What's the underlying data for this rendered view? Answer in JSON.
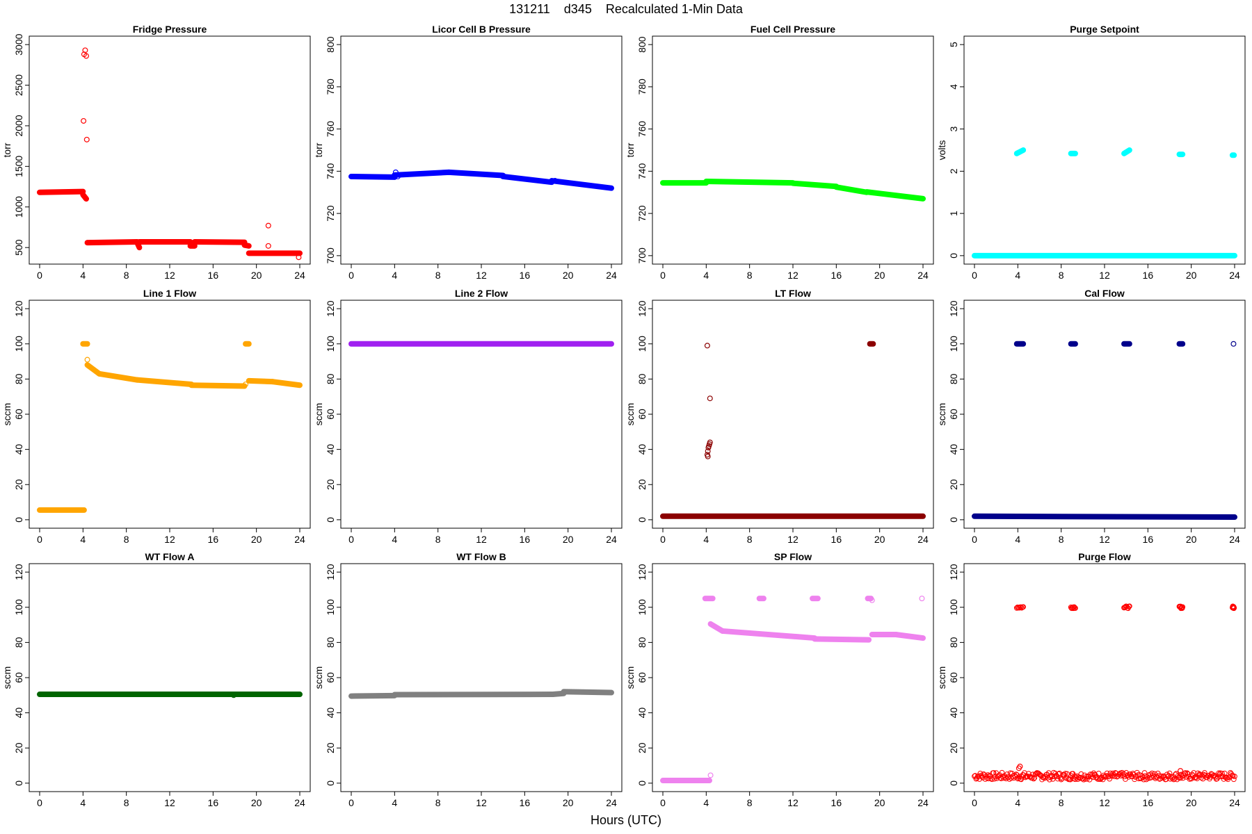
{
  "figure": {
    "title": "131211    d345    Recalculated 1-Min Data",
    "xlabel": "Hours (UTC)"
  },
  "chart_data": [
    {
      "type": "scatter",
      "title": "Fridge Pressure",
      "ylabel": "torr",
      "color": "#ff0000",
      "xlim": [
        0,
        24
      ],
      "ylim": [
        400,
        3000
      ],
      "xticks": [
        0,
        4,
        8,
        12,
        16,
        20,
        24
      ],
      "yticks": [
        500,
        1000,
        1500,
        2000,
        2500,
        3000
      ],
      "segments": [
        [
          0,
          4,
          1180,
          1190
        ],
        [
          4,
          4.3,
          1150,
          1100
        ],
        [
          4.4,
          9,
          560,
          570
        ],
        [
          9,
          9.2,
          560,
          500
        ],
        [
          9.2,
          13.9,
          570,
          570
        ],
        [
          13.9,
          14.3,
          520,
          520
        ],
        [
          14.3,
          18.9,
          570,
          565
        ],
        [
          18.9,
          19.3,
          530,
          520
        ],
        [
          19.3,
          24,
          430,
          430
        ]
      ],
      "points": [
        [
          4.1,
          2880
        ],
        [
          4.2,
          2930
        ],
        [
          4.3,
          2860
        ],
        [
          4.05,
          2060
        ],
        [
          4.35,
          1830
        ],
        [
          21.1,
          770
        ],
        [
          21.1,
          520
        ],
        [
          23.9,
          380
        ]
      ]
    },
    {
      "type": "scatter",
      "title": "Licor Cell B Pressure",
      "ylabel": "torr",
      "color": "#0000ff",
      "xlim": [
        0,
        24
      ],
      "ylim": [
        700,
        800
      ],
      "xticks": [
        0,
        4,
        8,
        12,
        16,
        20,
        24
      ],
      "yticks": [
        700,
        720,
        740,
        760,
        780,
        800
      ],
      "segments": [
        [
          0,
          4,
          737.5,
          737.2
        ],
        [
          4,
          9,
          738.2,
          739.5
        ],
        [
          9,
          14,
          739.5,
          738
        ],
        [
          14,
          18.5,
          737.5,
          734.8
        ],
        [
          18.5,
          24,
          735.5,
          732
        ]
      ],
      "points": [
        [
          4.1,
          739.5
        ],
        [
          4.3,
          737.5
        ],
        [
          18.8,
          735.5
        ]
      ]
    },
    {
      "type": "scatter",
      "title": "Fuel Cell Pressure",
      "ylabel": "torr",
      "color": "#00ff00",
      "xlim": [
        0,
        24
      ],
      "ylim": [
        700,
        800
      ],
      "xticks": [
        0,
        4,
        8,
        12,
        16,
        20,
        24
      ],
      "yticks": [
        700,
        720,
        740,
        760,
        780,
        800
      ],
      "segments": [
        [
          0,
          4,
          734.5,
          734.5
        ],
        [
          4,
          12,
          735.2,
          734.5
        ],
        [
          12,
          16,
          734.3,
          732.8
        ],
        [
          16,
          18.8,
          732.5,
          730
        ],
        [
          18.8,
          24,
          730.2,
          727
        ]
      ],
      "points": []
    },
    {
      "type": "scatter",
      "title": "Purge Setpoint",
      "ylabel": "volts",
      "color": "#00ffff",
      "xlim": [
        0,
        24
      ],
      "ylim": [
        0,
        5
      ],
      "xticks": [
        0,
        4,
        8,
        12,
        16,
        20,
        24
      ],
      "yticks": [
        0,
        1,
        2,
        3,
        4,
        5
      ],
      "segments": [
        [
          0,
          24,
          0,
          0
        ],
        [
          3.9,
          4.5,
          2.42,
          2.5
        ],
        [
          8.9,
          9.3,
          2.42,
          2.42
        ],
        [
          13.8,
          14.3,
          2.42,
          2.5
        ],
        [
          18.9,
          19.2,
          2.4,
          2.4
        ],
        [
          23.8,
          23.95,
          2.38,
          2.38
        ]
      ],
      "points": []
    },
    {
      "type": "scatter",
      "title": "Line 1 Flow",
      "ylabel": "sccm",
      "color": "#ffa500",
      "xlim": [
        0,
        24
      ],
      "ylim": [
        0,
        120
      ],
      "xticks": [
        0,
        4,
        8,
        12,
        16,
        20,
        24
      ],
      "yticks": [
        0,
        20,
        40,
        60,
        80,
        100,
        120
      ],
      "segments": [
        [
          0,
          4.1,
          5.5,
          5.5
        ],
        [
          4,
          4.4,
          100,
          100
        ],
        [
          4.4,
          5.5,
          88,
          83
        ],
        [
          5.5,
          9,
          83,
          79.5
        ],
        [
          9,
          14,
          79.5,
          77
        ],
        [
          14,
          18.9,
          76.5,
          76
        ],
        [
          19,
          19.3,
          100,
          100
        ],
        [
          19.3,
          21.5,
          79,
          78.5
        ],
        [
          21.5,
          24,
          78.5,
          76.5
        ]
      ],
      "points": [
        [
          4.4,
          91
        ],
        [
          19,
          77
        ]
      ]
    },
    {
      "type": "scatter",
      "title": "Line 2 Flow",
      "ylabel": "sccm",
      "color": "#a020f0",
      "xlim": [
        0,
        24
      ],
      "ylim": [
        0,
        120
      ],
      "xticks": [
        0,
        4,
        8,
        12,
        16,
        20,
        24
      ],
      "yticks": [
        0,
        20,
        40,
        60,
        80,
        100,
        120
      ],
      "segments": [
        [
          0,
          24,
          100,
          100
        ]
      ],
      "points": []
    },
    {
      "type": "scatter",
      "title": "LT Flow",
      "ylabel": "sccm",
      "color": "#8b0000",
      "xlim": [
        0,
        24
      ],
      "ylim": [
        0,
        120
      ],
      "xticks": [
        0,
        4,
        8,
        12,
        16,
        20,
        24
      ],
      "yticks": [
        0,
        20,
        40,
        60,
        80,
        100,
        120
      ],
      "segments": [
        [
          0,
          24,
          2,
          2
        ],
        [
          19.1,
          19.4,
          100,
          100
        ]
      ],
      "points": [
        [
          4.1,
          99
        ],
        [
          4.35,
          69
        ],
        [
          4.1,
          37
        ],
        [
          4.15,
          39
        ],
        [
          4.2,
          41
        ],
        [
          4.25,
          42
        ],
        [
          4.3,
          43
        ],
        [
          4.35,
          44
        ],
        [
          4.15,
          36
        ]
      ]
    },
    {
      "type": "scatter",
      "title": "Cal Flow",
      "ylabel": "sccm",
      "color": "#00008b",
      "xlim": [
        0,
        24
      ],
      "ylim": [
        0,
        120
      ],
      "xticks": [
        0,
        4,
        8,
        12,
        16,
        20,
        24
      ],
      "yticks": [
        0,
        20,
        40,
        60,
        80,
        100,
        120
      ],
      "segments": [
        [
          0,
          24,
          2,
          1.5
        ],
        [
          3.9,
          4.5,
          100,
          100
        ],
        [
          8.9,
          9.3,
          100,
          100
        ],
        [
          13.8,
          14.3,
          100,
          100
        ],
        [
          18.9,
          19.2,
          100,
          100
        ]
      ],
      "points": [
        [
          23.9,
          100
        ]
      ]
    },
    {
      "type": "scatter",
      "title": "WT Flow A",
      "ylabel": "sccm",
      "color": "#006400",
      "xlim": [
        0,
        24
      ],
      "ylim": [
        0,
        120
      ],
      "xticks": [
        0,
        4,
        8,
        12,
        16,
        20,
        24
      ],
      "yticks": [
        0,
        20,
        40,
        60,
        80,
        100,
        120
      ],
      "segments": [
        [
          0,
          24,
          50.5,
          50.5
        ]
      ],
      "points": [
        [
          17.9,
          50
        ]
      ]
    },
    {
      "type": "scatter",
      "title": "WT Flow B",
      "ylabel": "sccm",
      "color": "#808080",
      "xlim": [
        0,
        24
      ],
      "ylim": [
        0,
        120
      ],
      "xticks": [
        0,
        4,
        8,
        12,
        16,
        20,
        24
      ],
      "yticks": [
        0,
        20,
        40,
        60,
        80,
        100,
        120
      ],
      "segments": [
        [
          0,
          4,
          49.5,
          49.8
        ],
        [
          4,
          18.6,
          50.3,
          50.5
        ],
        [
          18.6,
          19.6,
          50.5,
          51
        ],
        [
          19.6,
          24,
          52,
          51.5
        ]
      ],
      "points": []
    },
    {
      "type": "scatter",
      "title": "SP Flow",
      "ylabel": "sccm",
      "color": "#ee82ee",
      "xlim": [
        0,
        24
      ],
      "ylim": [
        0,
        120
      ],
      "xticks": [
        0,
        4,
        8,
        12,
        16,
        20,
        24
      ],
      "yticks": [
        0,
        20,
        40,
        60,
        80,
        100,
        120
      ],
      "segments": [
        [
          0,
          4.3,
          1.5,
          1.5
        ],
        [
          3.9,
          4.6,
          105,
          105
        ],
        [
          4.4,
          5.5,
          90.5,
          86.5
        ],
        [
          5.5,
          14,
          86.5,
          82.5
        ],
        [
          14,
          19,
          82,
          81.5
        ],
        [
          8.9,
          9.3,
          105,
          105
        ],
        [
          13.8,
          14.3,
          105,
          105
        ],
        [
          18.9,
          19.2,
          105,
          105
        ],
        [
          19.3,
          21.5,
          84.5,
          84.5
        ],
        [
          21.5,
          24,
          84.5,
          82.5
        ]
      ],
      "points": [
        [
          4.4,
          4.5
        ],
        [
          19.3,
          104
        ],
        [
          23.9,
          105
        ]
      ]
    },
    {
      "type": "scatter",
      "title": "Purge Flow",
      "ylabel": "sccm",
      "color": "#ff0000",
      "xlim": [
        0,
        24
      ],
      "ylim": [
        0,
        120
      ],
      "xticks": [
        0,
        4,
        8,
        12,
        16,
        20,
        24
      ],
      "yticks": [
        0,
        20,
        40,
        60,
        80,
        100,
        120
      ],
      "noise": true,
      "segments": [
        [
          0,
          24,
          4,
          4
        ],
        [
          3.9,
          4.5,
          100,
          100
        ],
        [
          8.9,
          9.3,
          100,
          100
        ],
        [
          13.8,
          14.3,
          100,
          100
        ],
        [
          18.9,
          19.2,
          100,
          100
        ],
        [
          23.8,
          23.95,
          100,
          100
        ]
      ],
      "points": [
        [
          4.1,
          8.5
        ],
        [
          4.2,
          9.5
        ],
        [
          19,
          7
        ]
      ]
    }
  ]
}
